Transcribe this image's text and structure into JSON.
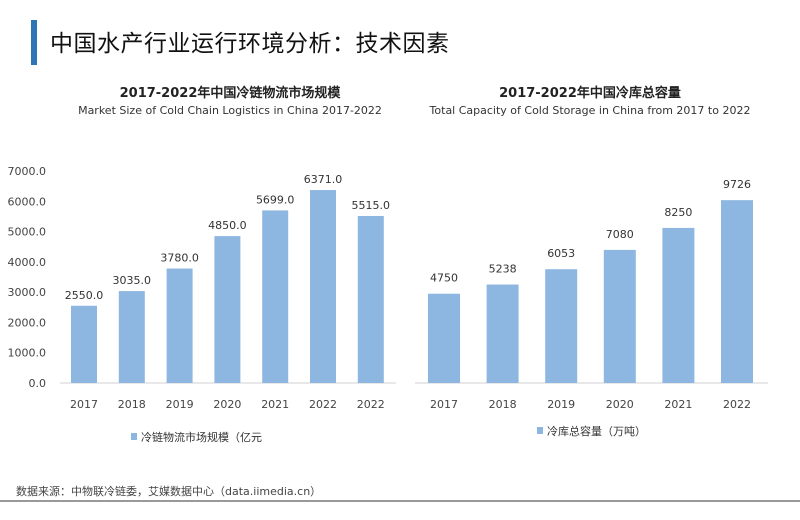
{
  "page_title": "中国水产行业运行环境分析：技术因素",
  "source": "数据来源：中物联冷链委，艾媒数据中心（data.iimedia.cn）",
  "colors": {
    "bar": "#8db7e0",
    "accent": "#2e75b6"
  },
  "chart_data": [
    {
      "type": "bar",
      "title": "2017-2022年中国冷链物流市场规模",
      "subtitle": "Market Size of Cold Chain Logistics in China 2017-2022",
      "categories": [
        "2017",
        "2018",
        "2019",
        "2020",
        "2021",
        "2022",
        "2022"
      ],
      "values": [
        2550.0,
        3035.0,
        3780.0,
        4850.0,
        5699.0,
        6371.0,
        5515.0
      ],
      "data_labels": [
        "2550.0",
        "3035.0",
        "3780.0",
        "4850.0",
        "5699.0",
        "6371.0",
        "5515.0"
      ],
      "legend": "冷链物流市场规模（亿元",
      "ylim": [
        0,
        7000
      ],
      "yticks": [
        "0.0",
        "1000.0",
        "2000.0",
        "3000.0",
        "4000.0",
        "5000.0",
        "6000.0",
        "7000.0"
      ],
      "legend_position": "bottom"
    },
    {
      "type": "bar",
      "title": "2017-2022年中国冷库总容量",
      "subtitle": "Total Capacity of Cold Storage in China from 2017 to 2022",
      "categories": [
        "2017",
        "2018",
        "2019",
        "2020",
        "2021",
        "2022"
      ],
      "values": [
        4750,
        5238,
        6053,
        7080,
        8250,
        9726
      ],
      "data_labels": [
        "4750",
        "5238",
        "6053",
        "7080",
        "8250",
        "9726"
      ],
      "legend": "冷库总容量（万吨）",
      "ylim": [
        0,
        10000
      ],
      "legend_position": "bottom"
    }
  ]
}
